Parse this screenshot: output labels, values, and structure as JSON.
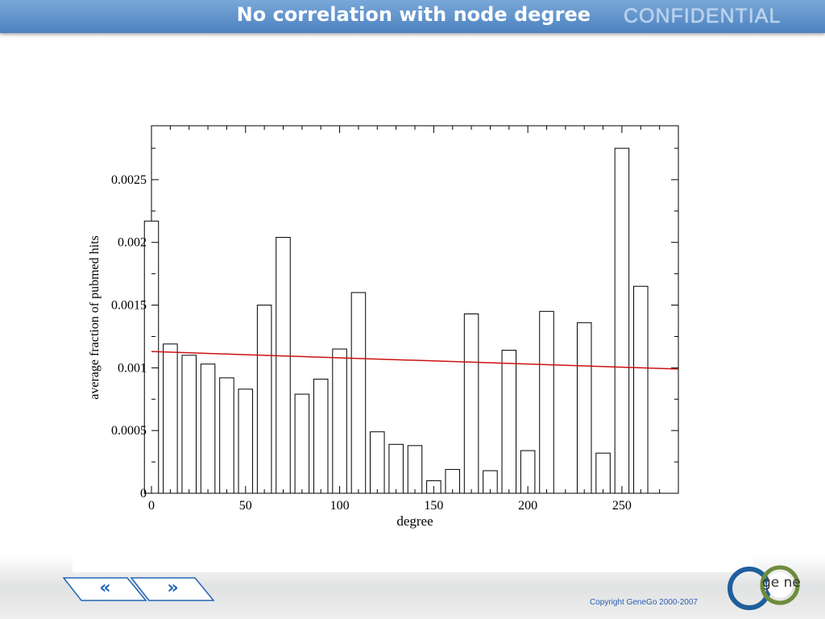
{
  "header": {
    "title": "No correlation with node degree",
    "confidential": "CONFIDENTIAL"
  },
  "nav": {
    "prev_label": "«",
    "next_label": "»"
  },
  "footer": {
    "copyright": "Copyright GeneGo 2000-2007",
    "logo_text": "ge ne"
  },
  "colors": {
    "header": "#5a8fcc",
    "trend": "#cc1111",
    "nav": "#2266b6"
  },
  "chart_data": {
    "type": "bar",
    "xlabel": "degree",
    "ylabel": "average fraction of pubmed hits",
    "xlim": [
      0,
      280
    ],
    "ylim": [
      0,
      0.00293
    ],
    "x_ticks": [
      0,
      50,
      100,
      150,
      200,
      250
    ],
    "y_ticks": [
      0,
      0.0005,
      0.001,
      0.0015,
      0.002,
      0.0025
    ],
    "y_tick_labels": [
      "0",
      "0.0005",
      "0.001",
      "0.0015",
      "0.002",
      "0.0025"
    ],
    "bar_width": 7.5,
    "x": [
      0,
      10,
      20,
      30,
      40,
      50,
      60,
      70,
      80,
      90,
      100,
      110,
      120,
      130,
      140,
      150,
      160,
      170,
      180,
      190,
      200,
      210,
      230,
      240,
      250,
      260
    ],
    "values": [
      0.00217,
      0.00119,
      0.0011,
      0.00103,
      0.00092,
      0.00083,
      0.0015,
      0.00204,
      0.00079,
      0.00091,
      0.00115,
      0.0016,
      0.00049,
      0.00039,
      0.00038,
      0.0001,
      0.00019,
      0.00143,
      0.00018,
      0.00114,
      0.00034,
      0.00145,
      0.00136,
      0.00032,
      0.00275,
      0.00165
    ],
    "trend_line": {
      "x": [
        0,
        280
      ],
      "y": [
        0.00113,
        0.00099
      ]
    },
    "grid": false
  }
}
